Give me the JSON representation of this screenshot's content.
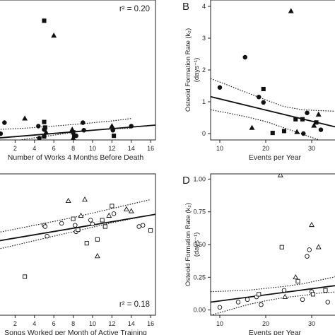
{
  "chart_data": [
    {
      "id": "A",
      "panel_label": "",
      "type": "scatter",
      "xlabel": "Number of Works 4 Months Before Death",
      "ylabel": "",
      "xlim": [
        0,
        16.5
      ],
      "ylim": [
        0,
        4.05
      ],
      "xticks": [
        2,
        4,
        6,
        8,
        10,
        12,
        14,
        16
      ],
      "yticks": [],
      "annotation": {
        "text": "r² = 0.20",
        "position": "top-right"
      },
      "fit": {
        "x": [
          0,
          16.5
        ],
        "y": [
          0.05,
          0.43
        ]
      },
      "ci_upper": {
        "x": [
          0,
          3,
          6,
          9,
          12,
          14
        ],
        "y": [
          0.3,
          0.34,
          0.4,
          0.47,
          0.55,
          0.62
        ]
      },
      "ci_lower": {
        "x": [
          0,
          3,
          6,
          9,
          12,
          14
        ],
        "y": [
          -0.12,
          0.02,
          0.14,
          0.26,
          0.32,
          0.34
        ]
      },
      "grid": false,
      "points": [
        {
          "x": 0.5,
          "y": 0.18,
          "m": "circle"
        },
        {
          "x": 0.9,
          "y": 0.5,
          "m": "circle"
        },
        {
          "x": 3.0,
          "y": 0.62,
          "m": "triangle"
        },
        {
          "x": 4.4,
          "y": 0.4,
          "m": "circle"
        },
        {
          "x": 4.5,
          "y": 0.05,
          "m": "circle"
        },
        {
          "x": 5.0,
          "y": 3.45,
          "m": "square"
        },
        {
          "x": 5.0,
          "y": 0.52,
          "m": "square"
        },
        {
          "x": 5.1,
          "y": 0.36,
          "m": "square"
        },
        {
          "x": 5.0,
          "y": 0.3,
          "m": "circle"
        },
        {
          "x": 5.2,
          "y": 0.22,
          "m": "triangle"
        },
        {
          "x": 5.0,
          "y": 0.1,
          "m": "square"
        },
        {
          "x": 6.0,
          "y": 3.02,
          "m": "triangle"
        },
        {
          "x": 7.9,
          "y": 0.3,
          "m": "triangle"
        },
        {
          "x": 8.0,
          "y": 0.22,
          "m": "square"
        },
        {
          "x": 8.1,
          "y": 0.12,
          "m": "square"
        },
        {
          "x": 8.3,
          "y": 0.12,
          "m": "circle"
        },
        {
          "x": 8.0,
          "y": 0.05,
          "m": "triangle"
        },
        {
          "x": 9.0,
          "y": 0.5,
          "m": "circle"
        },
        {
          "x": 9.1,
          "y": 0.28,
          "m": "circle"
        },
        {
          "x": 12.0,
          "y": 0.4,
          "m": "triangle"
        },
        {
          "x": 12.1,
          "y": 0.28,
          "m": "circle"
        },
        {
          "x": 12.2,
          "y": 0.12,
          "m": "square"
        },
        {
          "x": 14.0,
          "y": 0.4,
          "m": "circle"
        }
      ]
    },
    {
      "id": "B",
      "panel_label": "B",
      "type": "scatter",
      "xlabel": "Events per Year",
      "ylabel": "Osteoid Formation Rate (k₂)",
      "ylabel2": "(days⁻¹)",
      "xlim": [
        8,
        36
      ],
      "ylim": [
        -0.2,
        4.2
      ],
      "xticks": [
        10,
        20,
        30
      ],
      "yticks": [
        0,
        1,
        2,
        3,
        4
      ],
      "annotation": null,
      "fit": {
        "x": [
          8,
          36
        ],
        "y": [
          1.16,
          0.18
        ]
      },
      "ci_upper": {
        "x": [
          8,
          12,
          16,
          20,
          24,
          28,
          32,
          36
        ],
        "y": [
          1.73,
          1.51,
          1.28,
          1.06,
          0.85,
          0.75,
          0.72,
          0.7
        ]
      },
      "ci_lower": {
        "x": [
          8,
          12,
          16,
          20,
          24,
          28,
          32,
          36
        ],
        "y": [
          0.75,
          0.64,
          0.52,
          0.38,
          0.18,
          -0.02,
          -0.22,
          -0.38
        ]
      },
      "grid": false,
      "points": [
        {
          "x": 10.0,
          "y": 1.45,
          "m": "circle"
        },
        {
          "x": 15.5,
          "y": 2.4,
          "m": "circle"
        },
        {
          "x": 17.0,
          "y": 0.18,
          "m": "triangle"
        },
        {
          "x": 18.5,
          "y": 1.15,
          "m": "circle"
        },
        {
          "x": 19.5,
          "y": 1.4,
          "m": "square"
        },
        {
          "x": 19.5,
          "y": 0.98,
          "m": "circle"
        },
        {
          "x": 21.5,
          "y": 0.02,
          "m": "square"
        },
        {
          "x": 24.0,
          "y": 0.08,
          "m": "square"
        },
        {
          "x": 25.5,
          "y": 3.85,
          "m": "triangle"
        },
        {
          "x": 26.5,
          "y": 0.45,
          "m": "square"
        },
        {
          "x": 26.8,
          "y": 0.05,
          "m": "triangle"
        },
        {
          "x": 28.0,
          "y": 0.45,
          "m": "square"
        },
        {
          "x": 28.2,
          "y": 0.0,
          "m": "circle"
        },
        {
          "x": 29.0,
          "y": 0.65,
          "m": "circle"
        },
        {
          "x": 30.5,
          "y": 0.25,
          "m": "triangle"
        },
        {
          "x": 31.0,
          "y": 0.35,
          "m": "square"
        },
        {
          "x": 31.5,
          "y": 0.6,
          "m": "triangle"
        },
        {
          "x": 32.0,
          "y": 0.12,
          "m": "circle"
        }
      ]
    },
    {
      "id": "C",
      "panel_label": "",
      "type": "scatter",
      "xlabel": "Songs Worked per Month of Active Training",
      "ylabel": "",
      "xlim": [
        0,
        16.5
      ],
      "ylim": [
        -1.0,
        1.2
      ],
      "xticks": [
        2,
        4,
        6,
        8,
        10,
        12,
        14,
        16
      ],
      "yticks": [],
      "annotation": {
        "text": "r² = 0.18",
        "position": "bottom-right"
      },
      "fit": {
        "x": [
          0,
          16.5
        ],
        "y": [
          0.15,
          0.57
        ]
      },
      "ci_upper": {
        "x": [
          0,
          4,
          8,
          12,
          16
        ],
        "y": [
          0.28,
          0.4,
          0.52,
          0.66,
          0.8
        ]
      },
      "ci_lower": {
        "x": [
          0,
          4,
          8,
          12,
          16
        ],
        "y": [
          0.02,
          0.16,
          0.3,
          0.44,
          0.56
        ]
      },
      "grid": false,
      "points": [
        {
          "x": 3.0,
          "y": -0.4,
          "m": "square"
        },
        {
          "x": 5.0,
          "y": 0.4,
          "m": "circle"
        },
        {
          "x": 5.1,
          "y": 0.38,
          "m": "circle"
        },
        {
          "x": 5.3,
          "y": 0.23,
          "m": "circle"
        },
        {
          "x": 6.8,
          "y": 0.43,
          "m": "circle"
        },
        {
          "x": 7.5,
          "y": 0.78,
          "m": "triangle"
        },
        {
          "x": 8.0,
          "y": 0.5,
          "m": "square"
        },
        {
          "x": 8.2,
          "y": 0.4,
          "m": "circle"
        },
        {
          "x": 8.3,
          "y": 0.3,
          "m": "circle"
        },
        {
          "x": 8.5,
          "y": 0.33,
          "m": "square"
        },
        {
          "x": 8.8,
          "y": 0.55,
          "m": "triangle"
        },
        {
          "x": 9.2,
          "y": 0.8,
          "m": "triangle"
        },
        {
          "x": 9.4,
          "y": 0.12,
          "m": "square"
        },
        {
          "x": 9.8,
          "y": 0.48,
          "m": "circle"
        },
        {
          "x": 10.0,
          "y": 0.42,
          "m": "circle"
        },
        {
          "x": 10.5,
          "y": 0.18,
          "m": "square"
        },
        {
          "x": 11.0,
          "y": 0.48,
          "m": "square"
        },
        {
          "x": 11.3,
          "y": 0.38,
          "m": "square"
        },
        {
          "x": 11.7,
          "y": 0.55,
          "m": "triangle"
        },
        {
          "x": 12.0,
          "y": 0.7,
          "m": "square"
        },
        {
          "x": 12.2,
          "y": 0.58,
          "m": "circle"
        },
        {
          "x": 10.5,
          "y": -0.08,
          "m": "triangle"
        },
        {
          "x": 13.5,
          "y": 0.65,
          "m": "triangle"
        },
        {
          "x": 14.0,
          "y": 0.62,
          "m": "triangle"
        },
        {
          "x": 14.8,
          "y": 0.38,
          "m": "circle"
        },
        {
          "x": 15.2,
          "y": 0.4,
          "m": "circle"
        },
        {
          "x": 16.0,
          "y": 0.32,
          "m": "square"
        }
      ]
    },
    {
      "id": "D",
      "panel_label": "D",
      "type": "scatter",
      "xlabel": "Events per Year",
      "ylabel": "Osteoid Formation Rate (k₂)",
      "ylabel2": "(days⁻¹)",
      "xlim": [
        8,
        36
      ],
      "ylim": [
        -0.04,
        1.04
      ],
      "xticks": [
        10,
        20,
        30
      ],
      "yticks": [
        0.0,
        0.25,
        0.5,
        0.75,
        1.0
      ],
      "ytick_labels": [
        "0.00",
        "0.25",
        "0.50",
        "0.75",
        "1.00"
      ],
      "annotation": null,
      "fit": {
        "x": [
          8,
          36
        ],
        "y": [
          0.06,
          0.19
        ]
      },
      "ci_upper": {
        "x": [
          8,
          12,
          16,
          20,
          24,
          28,
          32,
          36
        ],
        "y": [
          0.14,
          0.145,
          0.15,
          0.165,
          0.18,
          0.2,
          0.23,
          0.26
        ]
      },
      "ci_lower": {
        "x": [
          8,
          12,
          16,
          20,
          24,
          28,
          32,
          36
        ],
        "y": [
          -0.04,
          0.0,
          0.04,
          0.07,
          0.095,
          0.11,
          0.13,
          0.14
        ]
      },
      "grid": false,
      "points": [
        {
          "x": 10.0,
          "y": 0.02,
          "m": "circle"
        },
        {
          "x": 14.0,
          "y": 0.06,
          "m": "circle"
        },
        {
          "x": 16.0,
          "y": 0.08,
          "m": "circle"
        },
        {
          "x": 18.0,
          "y": 0.1,
          "m": "circle"
        },
        {
          "x": 18.5,
          "y": 0.12,
          "m": "square"
        },
        {
          "x": 19.0,
          "y": 0.04,
          "m": "circle"
        },
        {
          "x": 23.2,
          "y": 1.03,
          "m": "triangle"
        },
        {
          "x": 23.5,
          "y": 0.48,
          "m": "square"
        },
        {
          "x": 24.0,
          "y": 0.15,
          "m": "circle"
        },
        {
          "x": 24.2,
          "y": 0.1,
          "m": "triangle"
        },
        {
          "x": 26.5,
          "y": 0.25,
          "m": "triangle"
        },
        {
          "x": 27.0,
          "y": 0.22,
          "m": "square"
        },
        {
          "x": 28.0,
          "y": 0.08,
          "m": "circle"
        },
        {
          "x": 29.0,
          "y": 0.41,
          "m": "circle"
        },
        {
          "x": 29.5,
          "y": 0.46,
          "m": "circle"
        },
        {
          "x": 30.0,
          "y": 0.65,
          "m": "triangle"
        },
        {
          "x": 30.0,
          "y": 0.14,
          "m": "circle"
        },
        {
          "x": 30.3,
          "y": 0.12,
          "m": "square"
        },
        {
          "x": 31.5,
          "y": 0.48,
          "m": "triangle"
        },
        {
          "x": 33.0,
          "y": 0.15,
          "m": "square"
        },
        {
          "x": 33.5,
          "y": 0.06,
          "m": "circle"
        }
      ]
    }
  ]
}
